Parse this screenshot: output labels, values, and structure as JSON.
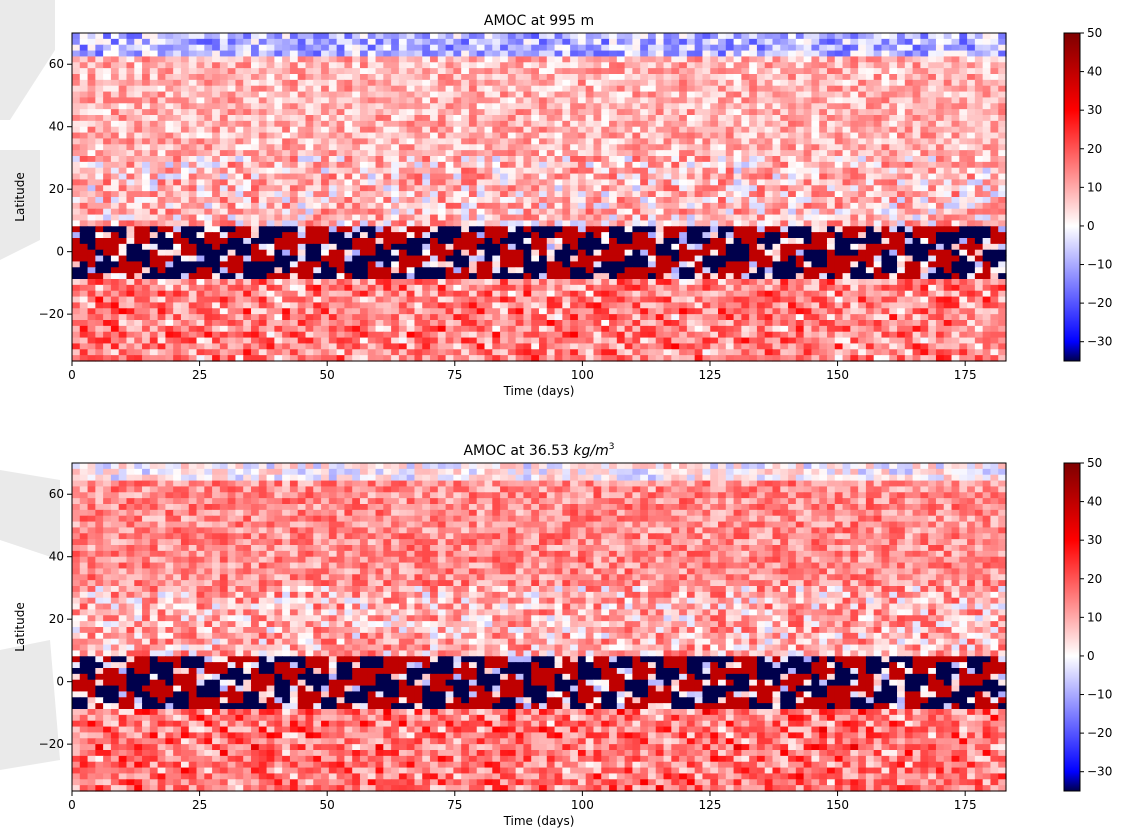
{
  "figure": {
    "background": "#ffffff",
    "watermark_color": "#d9d9d9"
  },
  "colormap": {
    "name": "seismic",
    "stops": [
      "#00004c",
      "#0000ff",
      "#ffffff",
      "#ff0000",
      "#7f0000"
    ]
  },
  "chart_data": [
    {
      "type": "heatmap",
      "title": "AMOC at 995 m",
      "title_plain": "AMOC at 995 m",
      "title_unit": "",
      "xlabel": "Time (days)",
      "ylabel": "Latitude",
      "xlim": [
        0,
        183
      ],
      "ylim": [
        -35,
        70
      ],
      "xticks": [
        0,
        25,
        50,
        75,
        100,
        125,
        150,
        175
      ],
      "yticks": [
        -20,
        0,
        20,
        40,
        60
      ],
      "colorbar": {
        "vmin": -35,
        "vmax": 50,
        "ticks": [
          -30,
          -20,
          -10,
          0,
          10,
          20,
          30,
          40,
          50
        ]
      },
      "grid": false,
      "field": {
        "north_band": {
          "lat_range": [
            62,
            70
          ],
          "level": -8
        },
        "subpolar": {
          "lat_range": [
            30,
            62
          ],
          "level": 12
        },
        "subtropics": {
          "lat_range": [
            8,
            30
          ],
          "level": 10
        },
        "equatorial_band": {
          "lat_range": [
            -8,
            8
          ],
          "amplitude": 45
        },
        "southern": {
          "lat_range": [
            -35,
            -8
          ],
          "level": 18
        }
      }
    },
    {
      "type": "heatmap",
      "title": "AMOC at 36.53 kg/m³",
      "title_plain": "AMOC at 36.53 ",
      "title_unit": "kg/m",
      "title_sup": "3",
      "xlabel": "Time (days)",
      "ylabel": "Latitude",
      "xlim": [
        0,
        183
      ],
      "ylim": [
        -35,
        70
      ],
      "xticks": [
        0,
        25,
        50,
        75,
        100,
        125,
        150,
        175
      ],
      "yticks": [
        -20,
        0,
        20,
        40,
        60
      ],
      "colorbar": {
        "vmin": -35,
        "vmax": 50,
        "ticks": [
          -30,
          -20,
          -10,
          0,
          10,
          20,
          30,
          40,
          50
        ]
      },
      "grid": false,
      "field": {
        "north_band": {
          "lat_range": [
            64,
            70
          ],
          "level": 2
        },
        "subpolar": {
          "lat_range": [
            30,
            64
          ],
          "level": 18
        },
        "subtropics": {
          "lat_range": [
            8,
            30
          ],
          "level": 12
        },
        "equatorial_band": {
          "lat_range": [
            -8,
            8
          ],
          "amplitude": 45
        },
        "southern": {
          "lat_range": [
            -35,
            -8
          ],
          "level": 20
        }
      }
    }
  ]
}
